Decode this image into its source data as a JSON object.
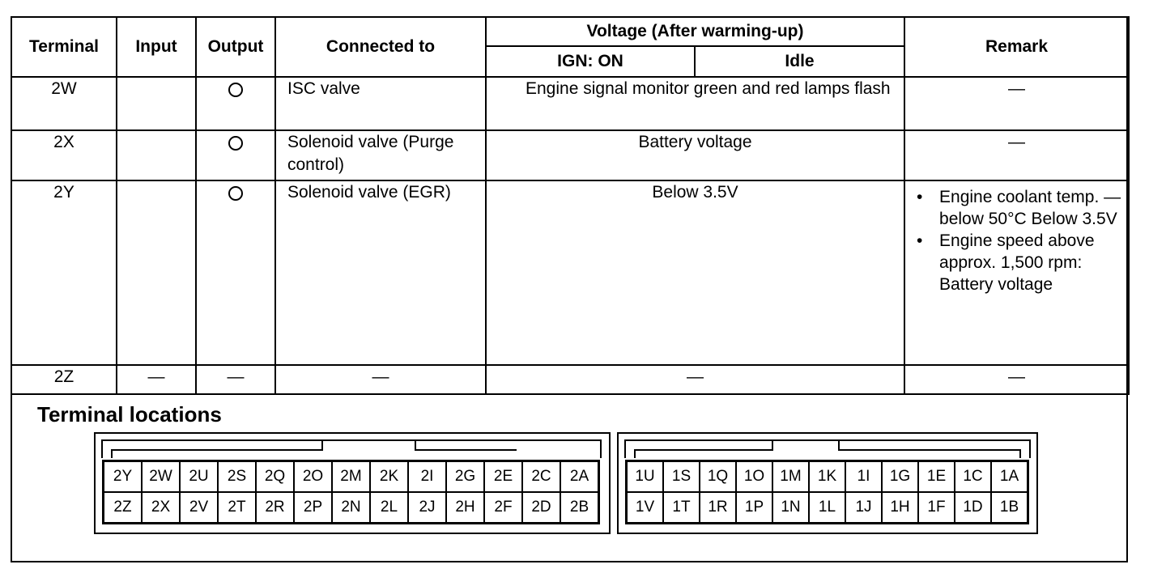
{
  "headers": {
    "terminal": "Terminal",
    "input": "Input",
    "output": "Output",
    "connected_to": "Connected to",
    "voltage": "Voltage (After warming-up)",
    "ign_on": "IGN: ON",
    "idle": "Idle",
    "remark": "Remark"
  },
  "rows": [
    {
      "terminal": "2W",
      "input": "",
      "output": "O",
      "connected": "ISC valve",
      "voltage": "Engine signal monitor green and red lamps flash",
      "remark": "—"
    },
    {
      "terminal": "2X",
      "input": "",
      "output": "O",
      "connected": "Solenoid valve (Purge control)",
      "voltage": "Battery voltage",
      "remark": "—"
    },
    {
      "terminal": "2Y",
      "input": "",
      "output": "O",
      "connected": "Solenoid valve (EGR)",
      "voltage": "Below 3.5V",
      "remark_items": [
        "Engine coolant temp. —below 50°C Below 3.5V",
        "Engine speed above approx. 1,500 rpm: Battery voltage"
      ]
    },
    {
      "terminal": "2Z",
      "input": "—",
      "output": "—",
      "connected": "—",
      "voltage": "—",
      "remark": "—"
    }
  ],
  "terminal_locations": {
    "title": "Terminal locations",
    "left_top": [
      "2Y",
      "2W",
      "2U",
      "2S",
      "2Q",
      "2O",
      "2M",
      "2K",
      "2I",
      "2G",
      "2E",
      "2C",
      "2A"
    ],
    "left_bottom": [
      "2Z",
      "2X",
      "2V",
      "2T",
      "2R",
      "2P",
      "2N",
      "2L",
      "2J",
      "2H",
      "2F",
      "2D",
      "2B"
    ],
    "right_top": [
      "1U",
      "1S",
      "1Q",
      "1O",
      "1M",
      "1K",
      "1I",
      "1G",
      "1E",
      "1C",
      "1A"
    ],
    "right_bottom": [
      "1V",
      "1T",
      "1R",
      "1P",
      "1N",
      "1L",
      "1J",
      "1H",
      "1F",
      "1D",
      "1B"
    ]
  }
}
